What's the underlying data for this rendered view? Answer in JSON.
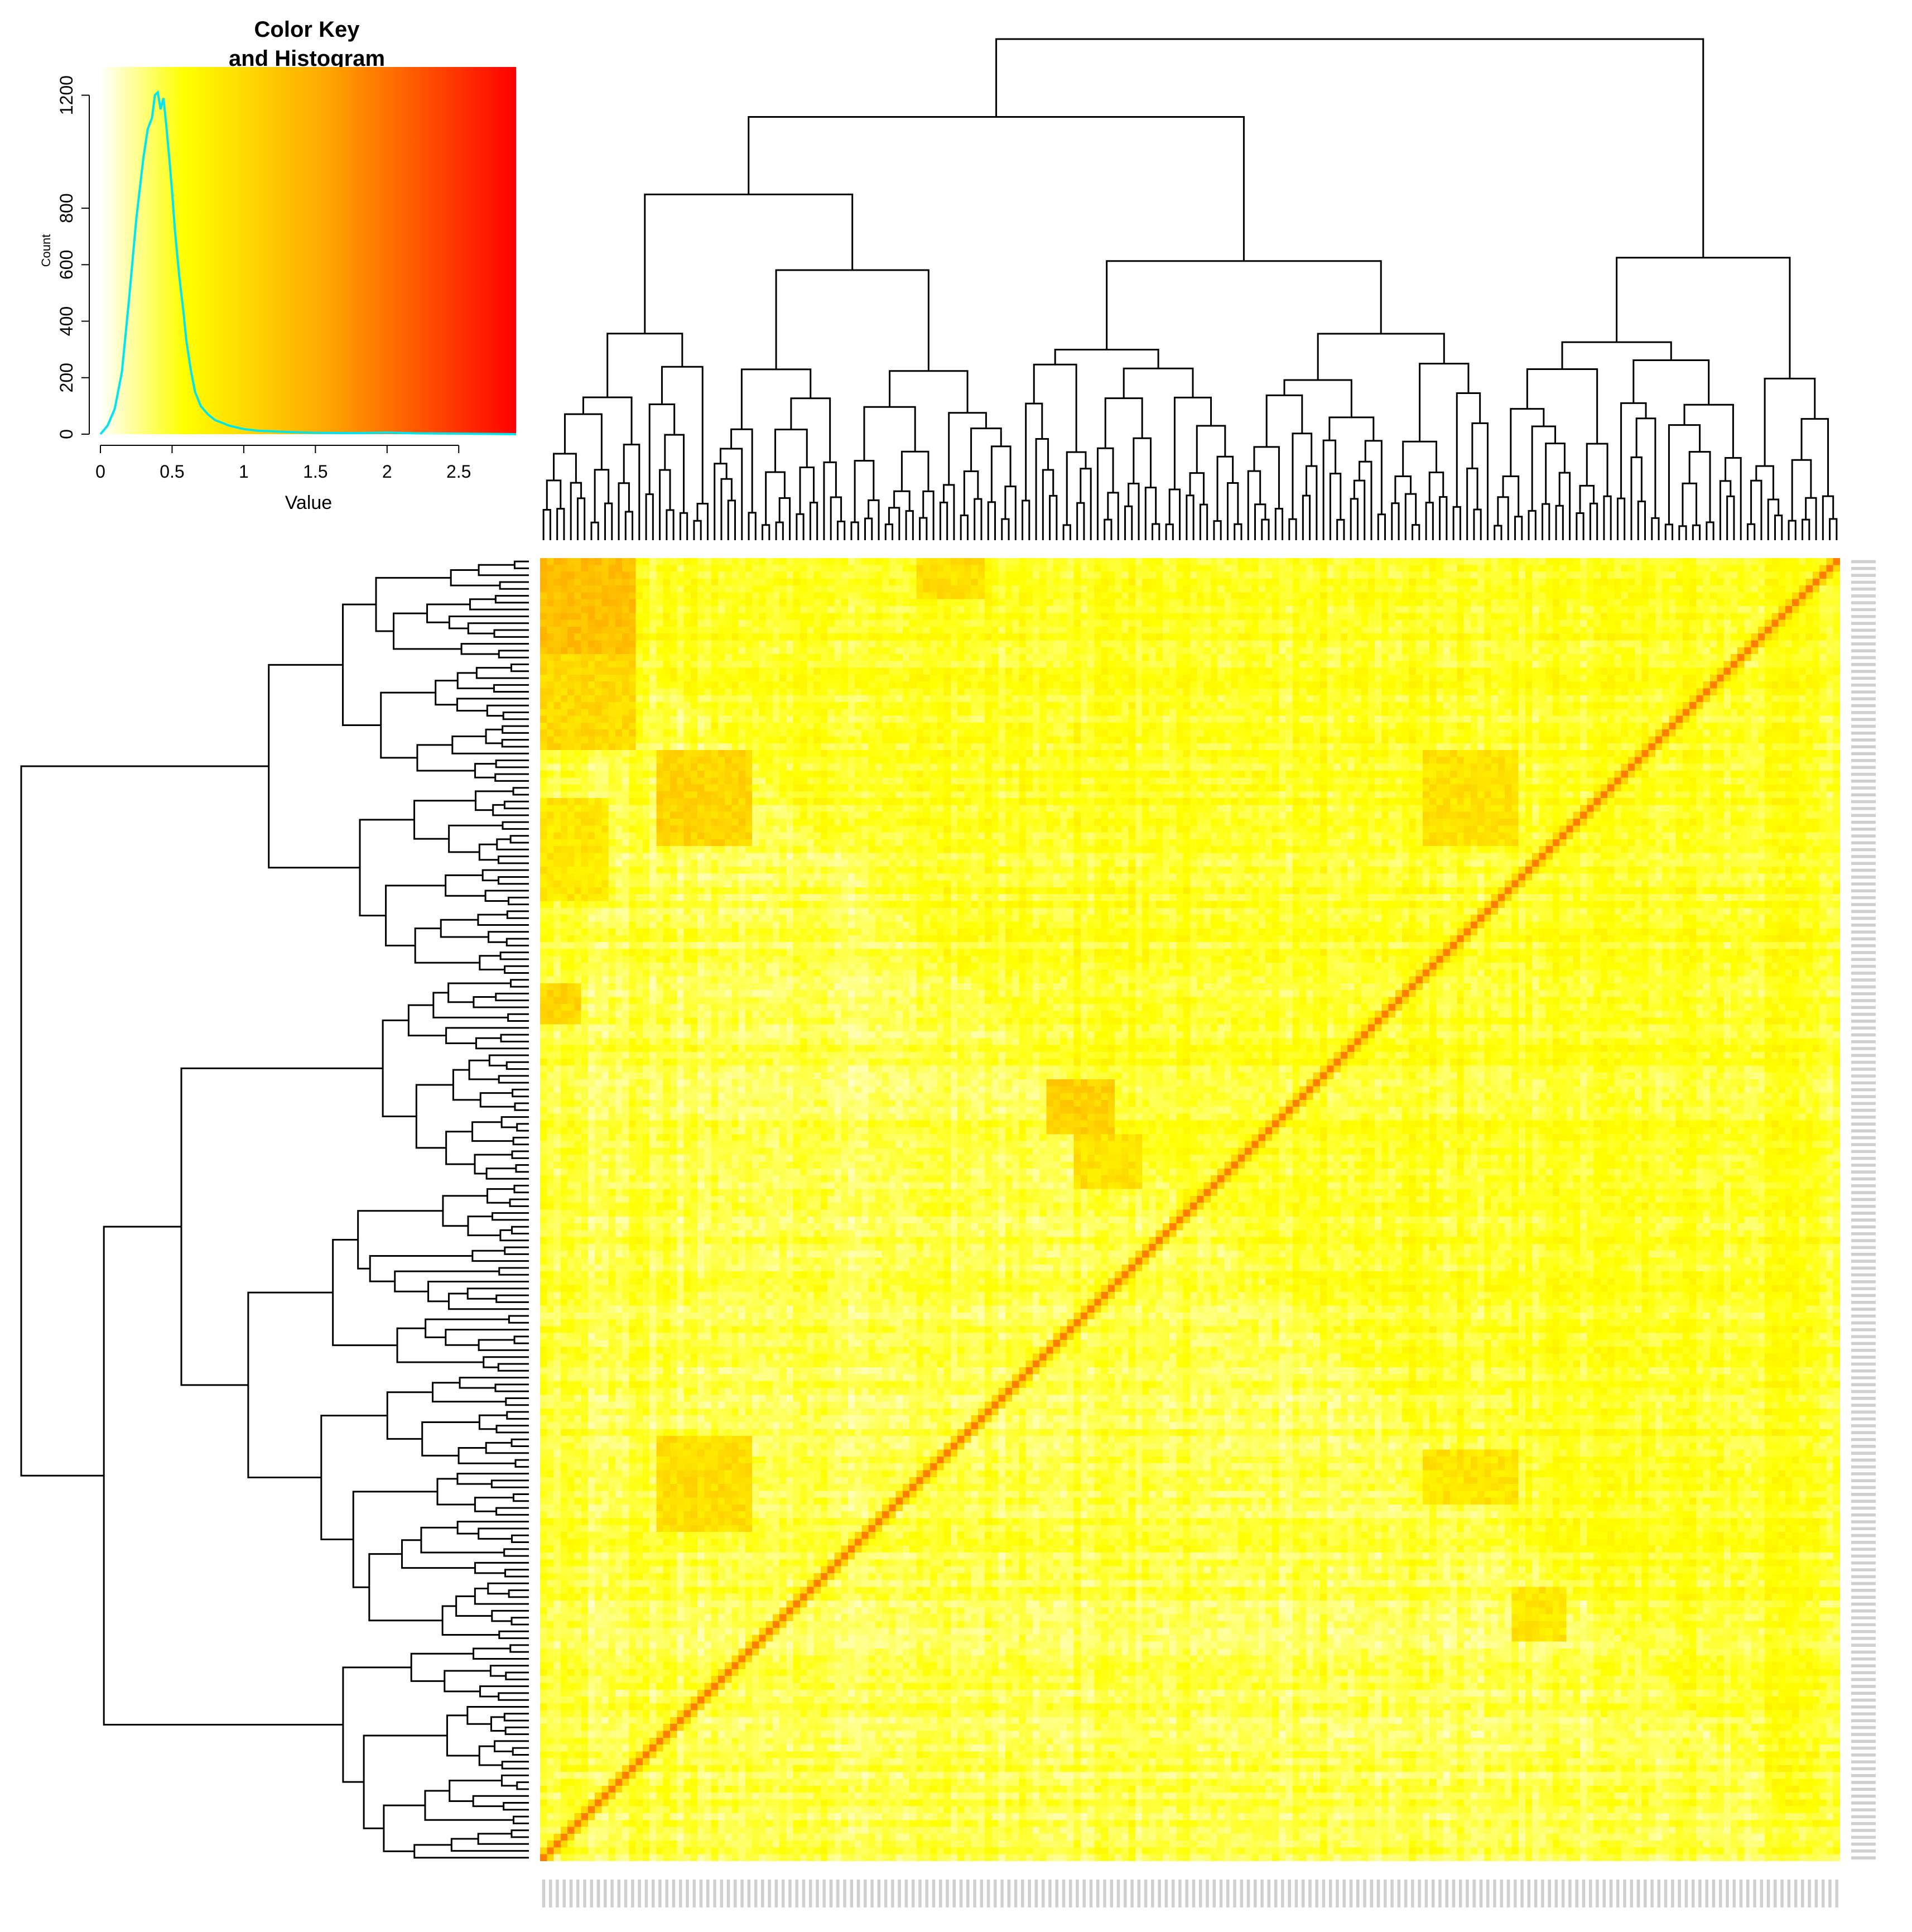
{
  "chart_data": [
    {
      "type": "heatmap",
      "description_role": "clustered correlation-style heatmap with row and column dendrograms",
      "n_rows": 190,
      "n_cols": 190,
      "color_scale": [
        "#ffffff",
        "#ffff00",
        "#ffa500",
        "#ff0000"
      ],
      "value_range": [
        0,
        2.9
      ],
      "diagonal_value": 1.9,
      "background_value": 0.45,
      "highlight_blocks": [
        {
          "rows": [
            0,
            14
          ],
          "cols": [
            0,
            14
          ],
          "value": 1.3
        },
        {
          "rows": [
            14,
            28
          ],
          "cols": [
            0,
            14
          ],
          "value": 1.0
        },
        {
          "rows": [
            28,
            42
          ],
          "cols": [
            17,
            31
          ],
          "value": 1.05
        },
        {
          "rows": [
            28,
            42
          ],
          "cols": [
            129,
            143
          ],
          "value": 0.9
        },
        {
          "rows": [
            35,
            50
          ],
          "cols": [
            0,
            10
          ],
          "value": 0.85
        },
        {
          "rows": [
            0,
            6
          ],
          "cols": [
            55,
            65
          ],
          "value": 0.95
        },
        {
          "rows": [
            62,
            68
          ],
          "cols": [
            0,
            6
          ],
          "value": 1.05
        },
        {
          "rows": [
            76,
            84
          ],
          "cols": [
            74,
            84
          ],
          "value": 1.1
        },
        {
          "rows": [
            84,
            92
          ],
          "cols": [
            78,
            88
          ],
          "value": 0.9
        },
        {
          "rows": [
            128,
            142
          ],
          "cols": [
            17,
            31
          ],
          "value": 0.95
        },
        {
          "rows": [
            130,
            138
          ],
          "cols": [
            129,
            143
          ],
          "value": 0.85
        },
        {
          "rows": [
            150,
            158
          ],
          "cols": [
            142,
            150
          ],
          "value": 0.85
        }
      ],
      "row_labels_visible": false,
      "col_labels_visible": false
    },
    {
      "type": "histogram",
      "title": "Color Key\nand Histogram",
      "title_lines": [
        "Color Key",
        "and Histogram"
      ],
      "xlabel": "Value",
      "ylabel": "Count",
      "xlim": [
        0,
        2.9
      ],
      "ylim": [
        0,
        1300
      ],
      "xticks": [
        0,
        0.5,
        1,
        1.5,
        2,
        2.5
      ],
      "xtick_labels": [
        "0",
        "0.5",
        "1",
        "1.5",
        "2",
        "2.5"
      ],
      "yticks": [
        0,
        200,
        400,
        600,
        800,
        1200
      ],
      "ytick_labels": [
        "0",
        "200",
        "400",
        "600",
        "800",
        "1200"
      ],
      "line_color": "#00e5ee",
      "x": [
        0.0,
        0.05,
        0.1,
        0.15,
        0.2,
        0.25,
        0.3,
        0.33,
        0.36,
        0.38,
        0.4,
        0.42,
        0.44,
        0.46,
        0.48,
        0.5,
        0.52,
        0.55,
        0.58,
        0.6,
        0.63,
        0.66,
        0.7,
        0.75,
        0.8,
        0.9,
        1.0,
        1.1,
        1.3,
        1.5,
        1.8,
        2.0,
        2.2,
        2.5,
        2.9
      ],
      "y": [
        0,
        30,
        90,
        220,
        480,
        760,
        980,
        1080,
        1120,
        1200,
        1210,
        1150,
        1190,
        1090,
        980,
        860,
        720,
        560,
        430,
        330,
        230,
        150,
        100,
        70,
        50,
        30,
        18,
        12,
        8,
        5,
        4,
        6,
        3,
        2,
        0
      ]
    }
  ]
}
